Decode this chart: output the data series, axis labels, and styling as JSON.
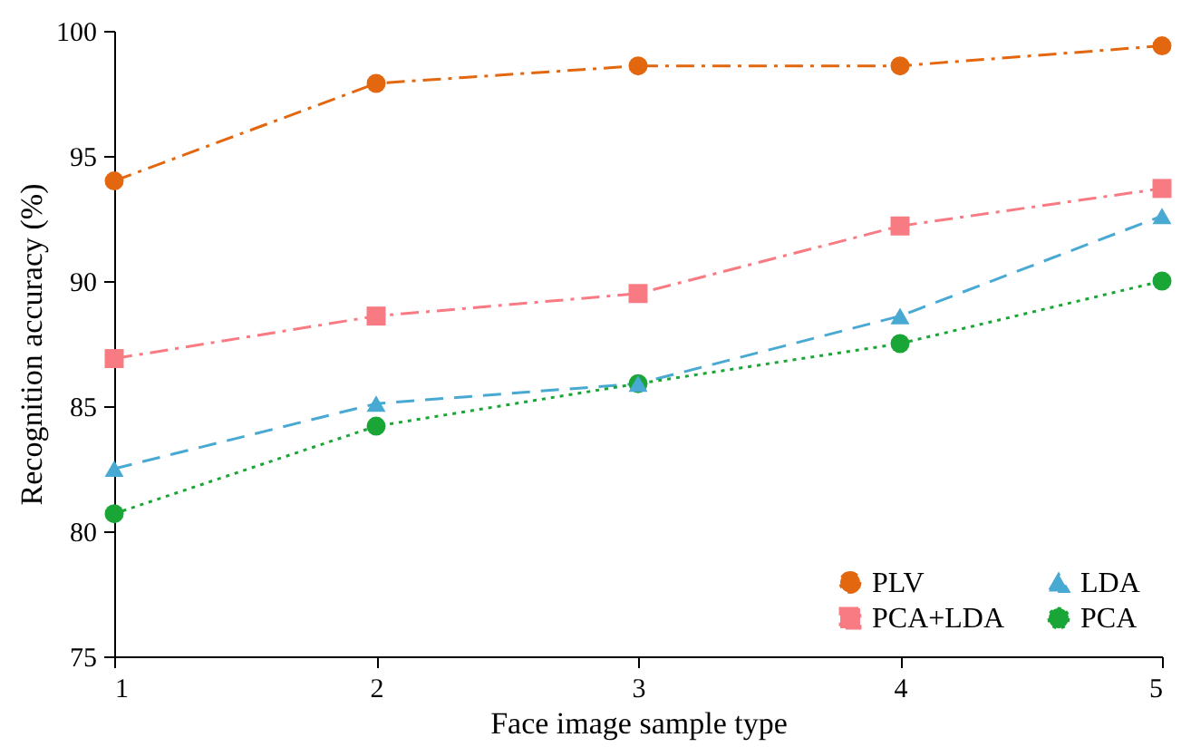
{
  "chart_data": {
    "type": "line",
    "xlabel": "Face image sample type",
    "ylabel": "Recognition accuracy (%)",
    "x": [
      1,
      2,
      3,
      4,
      5
    ],
    "xlim": [
      1,
      5
    ],
    "xticks": [
      1,
      2,
      3,
      4,
      5
    ],
    "ylim": [
      75,
      100
    ],
    "yticks": [
      75,
      80,
      85,
      90,
      95,
      100
    ],
    "grid": false,
    "legend": "bottom right",
    "series": [
      {
        "name": "PLV",
        "color": "#e2670e",
        "marker": "circle",
        "line_style": "dashdot",
        "values": [
          94.0,
          97.9,
          98.6,
          98.6,
          99.4
        ]
      },
      {
        "name": "PCA+LDA",
        "color": "#f87a82",
        "marker": "square",
        "line_style": "dashdot",
        "values": [
          86.9,
          88.6,
          89.5,
          92.2,
          93.7
        ]
      },
      {
        "name": "LDA",
        "color": "#48a9d2",
        "marker": "triangle",
        "line_style": "dashed",
        "values": [
          82.5,
          85.1,
          85.9,
          88.6,
          92.6
        ]
      },
      {
        "name": "PCA",
        "color": "#1aa636",
        "marker": "circle",
        "line_style": "dotted",
        "values": [
          80.7,
          84.2,
          85.9,
          87.5,
          90.0
        ]
      }
    ]
  }
}
